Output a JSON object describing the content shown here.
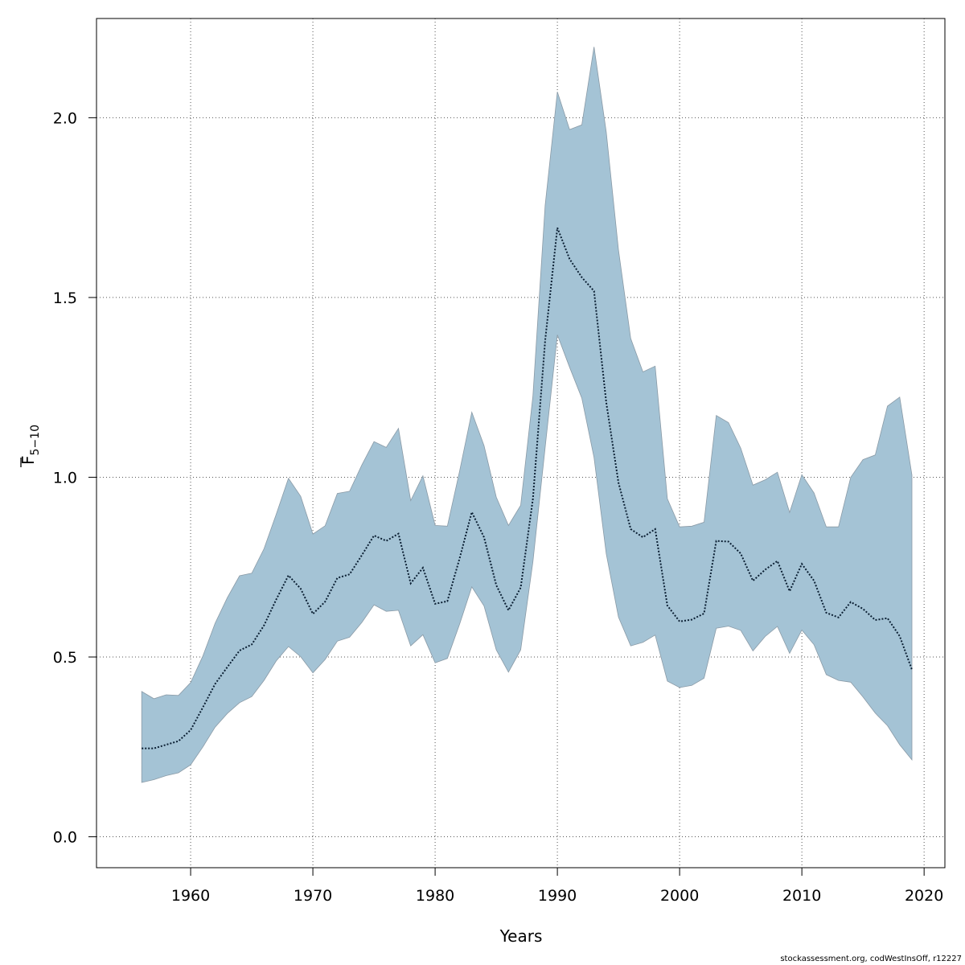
{
  "chart_data": {
    "type": "area",
    "title": "",
    "xlabel": "Years",
    "ylabel": "F 5−10",
    "ylabel_main": "F",
    "ylabel_sub": "5−10",
    "xlim": [
      1952.3,
      2021.7
    ],
    "ylim": [
      -0.086,
      2.276
    ],
    "x_ticks": [
      1960,
      1970,
      1980,
      1990,
      2000,
      2010,
      2020
    ],
    "x_tick_labels": [
      "1960",
      "1970",
      "1980",
      "1990",
      "2000",
      "2010",
      "2020"
    ],
    "y_ticks": [
      0.0,
      0.5,
      1.0,
      1.5,
      2.0
    ],
    "y_tick_labels": [
      "0.0",
      "0.5",
      "1.0",
      "1.5",
      "2.0"
    ],
    "grid": true,
    "grid_style": "dotted",
    "colors": {
      "band": "#a4c3d5",
      "band_edge": "#8a9aa6",
      "line": "#0b1f33"
    },
    "years": [
      1956,
      1957,
      1958,
      1959,
      1960,
      1961,
      1962,
      1963,
      1964,
      1965,
      1966,
      1967,
      1968,
      1969,
      1970,
      1971,
      1972,
      1973,
      1974,
      1975,
      1976,
      1977,
      1978,
      1979,
      1980,
      1981,
      1982,
      1983,
      1984,
      1985,
      1986,
      1987,
      1988,
      1989,
      1990,
      1991,
      1992,
      1993,
      1994,
      1995,
      1996,
      1997,
      1998,
      1999,
      2000,
      2001,
      2002,
      2003,
      2004,
      2005,
      2006,
      2007,
      2008,
      2009,
      2010,
      2011,
      2012,
      2013,
      2014,
      2015,
      2016,
      2017,
      2018,
      2019
    ],
    "estimate": [
      0.246,
      0.246,
      0.256,
      0.266,
      0.297,
      0.36,
      0.425,
      0.472,
      0.518,
      0.535,
      0.588,
      0.66,
      0.727,
      0.69,
      0.62,
      0.654,
      0.72,
      0.73,
      0.783,
      0.838,
      0.823,
      0.843,
      0.705,
      0.748,
      0.648,
      0.655,
      0.774,
      0.903,
      0.833,
      0.7,
      0.63,
      0.693,
      0.94,
      1.38,
      1.694,
      1.607,
      1.556,
      1.518,
      1.208,
      0.985,
      0.856,
      0.833,
      0.856,
      0.643,
      0.599,
      0.604,
      0.621,
      0.823,
      0.821,
      0.788,
      0.712,
      0.743,
      0.767,
      0.683,
      0.759,
      0.712,
      0.623,
      0.61,
      0.653,
      0.634,
      0.603,
      0.608,
      0.558,
      0.465
    ],
    "upper": [
      0.404,
      0.384,
      0.395,
      0.393,
      0.429,
      0.503,
      0.594,
      0.665,
      0.726,
      0.733,
      0.801,
      0.897,
      0.997,
      0.947,
      0.842,
      0.865,
      0.955,
      0.961,
      1.034,
      1.099,
      1.083,
      1.136,
      0.935,
      1.004,
      0.866,
      0.864,
      1.017,
      1.181,
      1.088,
      0.945,
      0.866,
      0.922,
      1.226,
      1.756,
      2.072,
      1.967,
      1.98,
      2.197,
      1.96,
      1.632,
      1.386,
      1.293,
      1.309,
      0.94,
      0.862,
      0.864,
      0.875,
      1.172,
      1.152,
      1.081,
      0.978,
      0.993,
      1.014,
      0.902,
      1.007,
      0.956,
      0.862,
      0.862,
      1.0,
      1.049,
      1.062,
      1.198,
      1.223,
      1.006
    ],
    "lower": [
      0.151,
      0.159,
      0.17,
      0.178,
      0.2,
      0.25,
      0.305,
      0.343,
      0.373,
      0.39,
      0.435,
      0.489,
      0.529,
      0.501,
      0.456,
      0.493,
      0.544,
      0.555,
      0.596,
      0.645,
      0.627,
      0.63,
      0.531,
      0.562,
      0.484,
      0.496,
      0.591,
      0.695,
      0.642,
      0.52,
      0.458,
      0.52,
      0.765,
      1.083,
      1.396,
      1.306,
      1.22,
      1.055,
      0.787,
      0.611,
      0.531,
      0.541,
      0.561,
      0.433,
      0.415,
      0.421,
      0.441,
      0.58,
      0.586,
      0.574,
      0.517,
      0.557,
      0.585,
      0.51,
      0.575,
      0.534,
      0.451,
      0.435,
      0.43,
      0.389,
      0.344,
      0.309,
      0.256,
      0.214
    ]
  },
  "footer": {
    "credit": "stockassessment.org, codWestInsOff, r12227"
  }
}
